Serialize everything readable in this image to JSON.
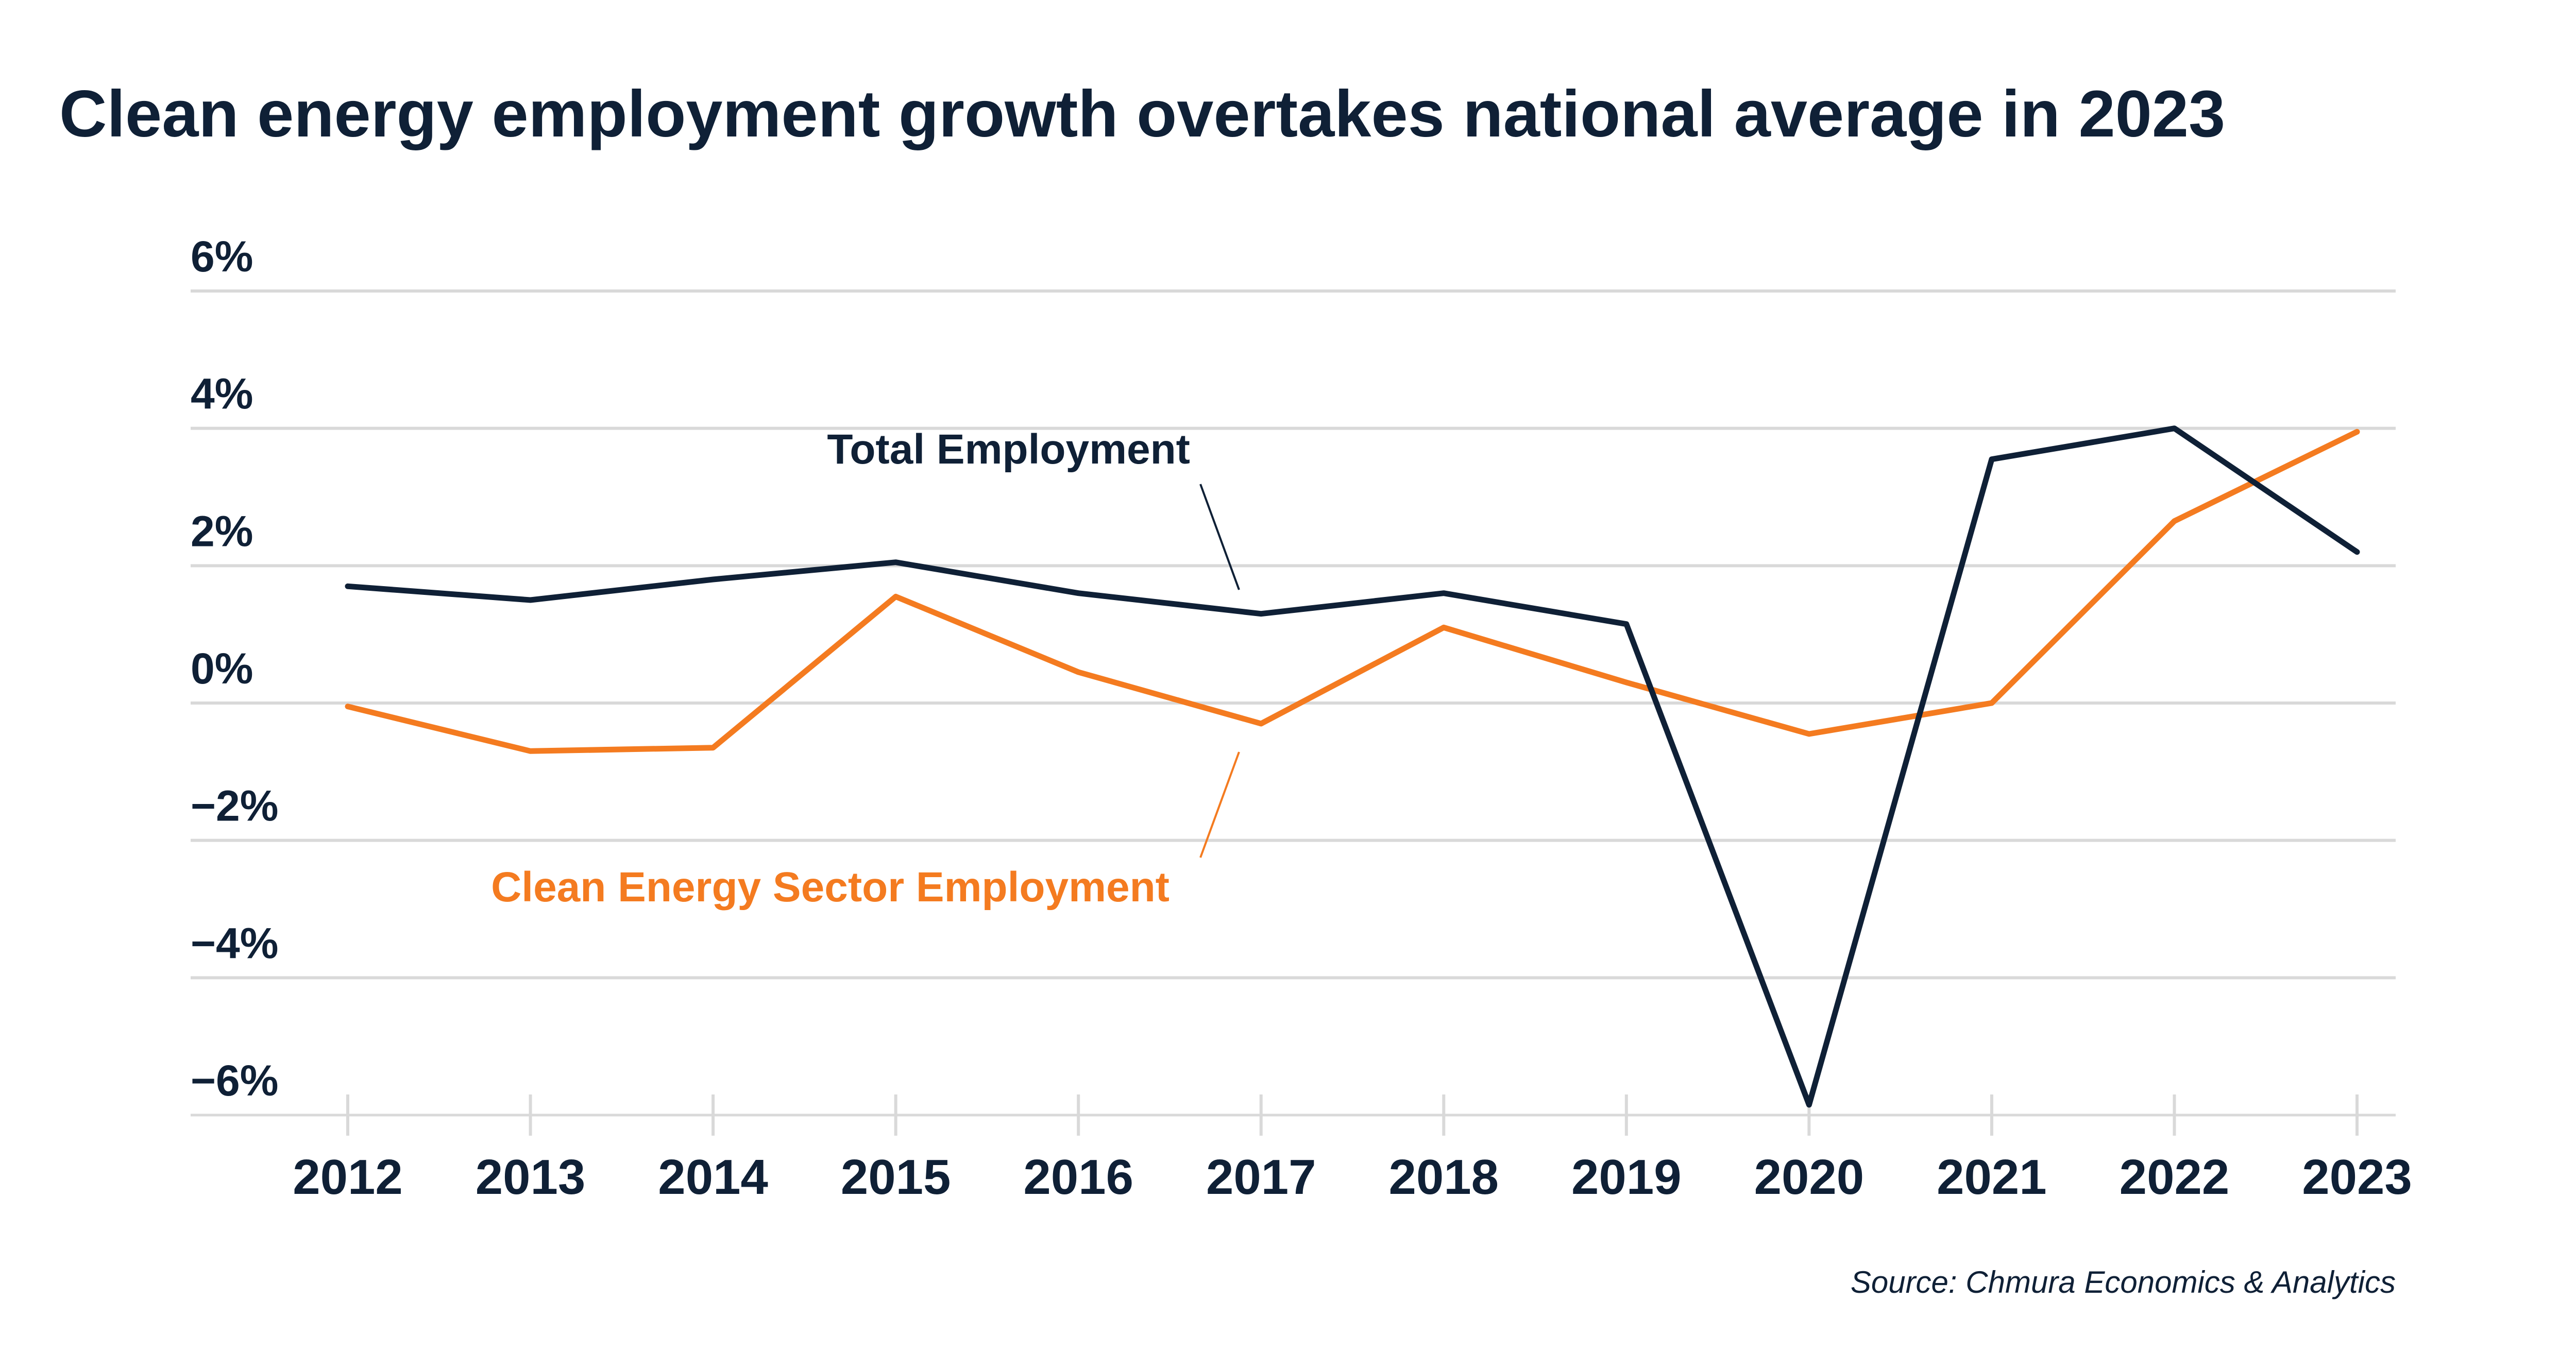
{
  "colors": {
    "background": "#ffffff",
    "text": "#0f2036",
    "grid": "#d9d9d9",
    "total_series": "#0f2036",
    "clean_series": "#f47b20"
  },
  "chart_data": {
    "type": "line",
    "title": "Clean energy employment growth overtakes national average in 2023",
    "xlabel": "",
    "ylabel": "",
    "x": [
      "2012",
      "2013",
      "2014",
      "2015",
      "2016",
      "2017",
      "2018",
      "2019",
      "2020",
      "2021",
      "2022",
      "2023"
    ],
    "ylim": [
      -6,
      6
    ],
    "yticks": [
      6,
      4,
      2,
      0,
      -2,
      -4,
      -6
    ],
    "ytick_labels": [
      "6%",
      "4%",
      "2%",
      "0%",
      "−2%",
      "−4%",
      "−6%"
    ],
    "grid": true,
    "legend": "direct labels on lines",
    "series": [
      {
        "name": "Total Employment",
        "color": "#0f2036",
        "values": [
          1.7,
          1.5,
          1.8,
          2.05,
          1.6,
          1.3,
          1.6,
          1.15,
          -5.85,
          3.55,
          4.0,
          2.2
        ]
      },
      {
        "name": "Clean Energy Sector Employment",
        "color": "#f47b20",
        "values": [
          -0.05,
          -0.7,
          -0.65,
          1.55,
          0.45,
          -0.3,
          1.1,
          0.3,
          -0.45,
          0.0,
          2.65,
          3.95
        ]
      }
    ],
    "source": "Source: Chmura Economics & Analytics"
  }
}
